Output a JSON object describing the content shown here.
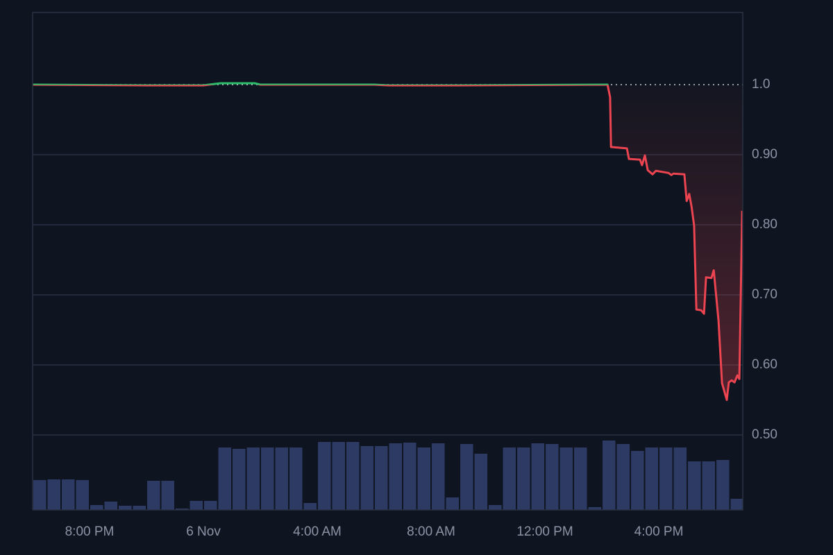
{
  "chart_data": {
    "type": "line",
    "x": [
      18,
      22,
      24,
      24.6,
      25.8,
      26,
      30,
      30.5,
      33,
      38.2,
      38.29,
      38.32,
      38.88,
      38.95,
      39.34,
      39.41,
      39.51,
      39.61,
      39.78,
      39.9,
      40.34,
      40.44,
      40.51,
      40.9,
      40.98,
      41.07,
      41.15,
      41.24,
      41.32,
      41.49,
      41.59,
      41.66,
      41.85,
      41.93,
      42.1,
      42.22,
      42.39,
      42.46,
      42.56,
      42.66,
      42.76,
      42.83,
      42.93
    ],
    "values": [
      1.0,
      0.999,
      0.999,
      1.002,
      1.002,
      1.0,
      1.0,
      0.999,
      0.999,
      1.0,
      0.982,
      0.911,
      0.909,
      0.894,
      0.893,
      0.885,
      0.899,
      0.878,
      0.872,
      0.877,
      0.874,
      0.871,
      0.873,
      0.872,
      0.834,
      0.844,
      0.826,
      0.799,
      0.679,
      0.678,
      0.673,
      0.725,
      0.724,
      0.735,
      0.663,
      0.574,
      0.55,
      0.575,
      0.578,
      0.575,
      0.585,
      0.58,
      0.82
    ],
    "color": "#ec4450",
    "up_color": "#2ebd6b",
    "baseline": 1,
    "volume": {
      "x": [
        18.25,
        18.75,
        19.25,
        19.75,
        20.25,
        20.75,
        21.25,
        21.75,
        22.25,
        22.75,
        23.25,
        23.75,
        24.25,
        24.75,
        25.25,
        25.75,
        26.25,
        26.75,
        27.25,
        27.75,
        28.25,
        28.75,
        29.25,
        29.75,
        30.25,
        30.75,
        31.25,
        31.75,
        32.25,
        32.75,
        33.25,
        33.75,
        34.25,
        34.75,
        35.25,
        35.75,
        36.25,
        36.75,
        37.25,
        37.75,
        38.25,
        38.75,
        39.25,
        39.75,
        40.25,
        40.75,
        41.25,
        41.75,
        42.25,
        42.75
      ],
      "values": [
        4.3,
        4.4,
        4.4,
        4.3,
        0.7,
        1.2,
        0.6,
        0.6,
        4.2,
        4.2,
        0.2,
        1.3,
        1.3,
        9.0,
        8.8,
        9.0,
        9.0,
        9.0,
        9.0,
        1.0,
        9.8,
        9.8,
        9.8,
        9.2,
        9.2,
        9.6,
        9.7,
        9.0,
        9.6,
        1.8,
        9.5,
        8.1,
        0.7,
        9.0,
        9.0,
        9.6,
        9.5,
        9.0,
        9.0,
        0.4,
        10.0,
        9.5,
        8.5,
        9.0,
        9.0,
        9.0,
        7.0,
        7.0,
        7.2,
        1.6
      ],
      "color": "#2d3a64",
      "axis": "y2"
    },
    "xlim": [
      18,
      42.95
    ],
    "xticks": [
      {
        "value": 20,
        "label": "8:00 PM"
      },
      {
        "value": 24,
        "label": "6 Nov"
      },
      {
        "value": 28,
        "label": "4:00 AM"
      },
      {
        "value": 32,
        "label": "8:00 AM"
      },
      {
        "value": 36,
        "label": "12:00 PM"
      },
      {
        "value": 40,
        "label": "4:00 PM"
      }
    ],
    "ylim": [
      0.393,
      1.103
    ],
    "yticks": [
      {
        "value": 1,
        "label": "1.0"
      },
      {
        "value": 0.9,
        "label": "0.90"
      },
      {
        "value": 0.8,
        "label": "0.80"
      },
      {
        "value": 0.7,
        "label": "0.70"
      },
      {
        "value": 0.6,
        "label": "0.60"
      },
      {
        "value": 0.5,
        "label": "0.50"
      }
    ],
    "y2lim": [
      0,
      71.7
    ],
    "grid": true
  }
}
